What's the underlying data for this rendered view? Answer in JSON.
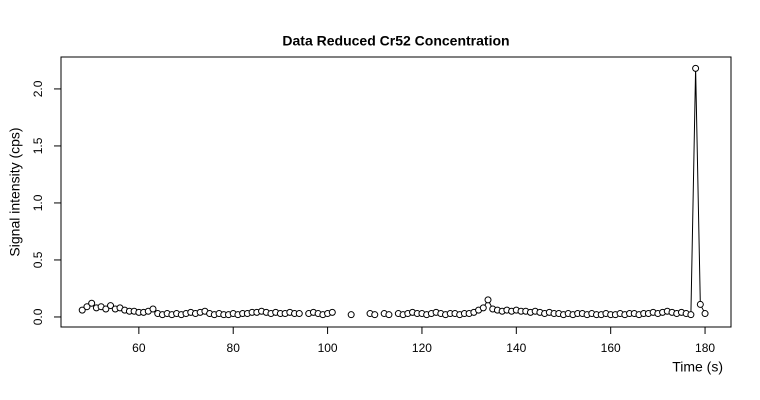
{
  "chart_data": {
    "type": "line",
    "markers": "open-circle",
    "color": "#000000",
    "title": "Data Reduced Cr52 Concentration",
    "x_label": "Time (s)",
    "y_label": "Signal intensity (cps)",
    "xlim": [
      43.5,
      185.5
    ],
    "ylim": [
      -0.088,
      2.28
    ],
    "xticks": [
      60,
      80,
      100,
      120,
      140,
      160,
      180
    ],
    "yticks": [
      {
        "value": 0,
        "label": "0.0"
      },
      {
        "value": 0.5,
        "label": "0.5"
      },
      {
        "value": 1,
        "label": "1.0"
      },
      {
        "value": 1.5,
        "label": "1.5"
      },
      {
        "value": 2,
        "label": "2.0"
      }
    ],
    "x": [
      48,
      49,
      50,
      51,
      52,
      53,
      54,
      55,
      56,
      57,
      58,
      59,
      60,
      61,
      62,
      63,
      64,
      65,
      66,
      67,
      68,
      69,
      70,
      71,
      72,
      73,
      74,
      75,
      76,
      77,
      78,
      79,
      80,
      81,
      82,
      83,
      84,
      85,
      86,
      87,
      88,
      89,
      90,
      91,
      92,
      93,
      94,
      95,
      96,
      97,
      98,
      99,
      100,
      101,
      102,
      103,
      104,
      105,
      106,
      107,
      108,
      109,
      110,
      111,
      112,
      113,
      114,
      115,
      116,
      117,
      118,
      119,
      120,
      121,
      122,
      123,
      124,
      125,
      126,
      127,
      128,
      129,
      130,
      131,
      132,
      133,
      134,
      135,
      136,
      137,
      138,
      139,
      140,
      141,
      142,
      143,
      144,
      145,
      146,
      147,
      148,
      149,
      150,
      151,
      152,
      153,
      154,
      155,
      156,
      157,
      158,
      159,
      160,
      161,
      162,
      163,
      164,
      165,
      166,
      167,
      168,
      169,
      170,
      171,
      172,
      173,
      174,
      175,
      176,
      177,
      178,
      179,
      180
    ],
    "y": [
      0.06,
      0.09,
      0.12,
      0.08,
      0.09,
      0.07,
      0.1,
      0.07,
      0.08,
      0.06,
      0.05,
      0.05,
      0.04,
      0.04,
      0.05,
      0.07,
      0.03,
      0.02,
      0.03,
      0.02,
      0.03,
      0.02,
      0.03,
      0.04,
      0.03,
      0.04,
      0.05,
      0.03,
      0.02,
      0.03,
      0.02,
      0.02,
      0.03,
      0.02,
      0.03,
      0.03,
      0.04,
      0.04,
      0.05,
      0.04,
      0.03,
      0.04,
      0.03,
      0.03,
      0.04,
      0.03,
      0.03,
      null,
      0.03,
      0.04,
      0.03,
      0.02,
      0.03,
      0.04,
      null,
      null,
      null,
      0.02,
      null,
      null,
      null,
      0.03,
      0.02,
      null,
      0.03,
      0.02,
      null,
      0.03,
      0.02,
      0.03,
      0.04,
      0.03,
      0.03,
      0.02,
      0.03,
      0.04,
      0.03,
      0.02,
      0.03,
      0.03,
      0.02,
      0.03,
      0.03,
      0.04,
      0.06,
      0.08,
      0.15,
      0.07,
      0.06,
      0.05,
      0.06,
      0.05,
      0.06,
      0.05,
      0.05,
      0.04,
      0.05,
      0.04,
      0.03,
      0.04,
      0.03,
      0.03,
      0.02,
      0.03,
      0.02,
      0.03,
      0.03,
      0.02,
      0.03,
      0.02,
      0.02,
      0.03,
      0.02,
      0.02,
      0.03,
      0.02,
      0.03,
      0.03,
      0.02,
      0.03,
      0.03,
      0.04,
      0.03,
      0.04,
      0.05,
      0.04,
      0.03,
      0.04,
      0.03,
      0.02,
      2.18,
      0.11,
      0.03
    ]
  }
}
